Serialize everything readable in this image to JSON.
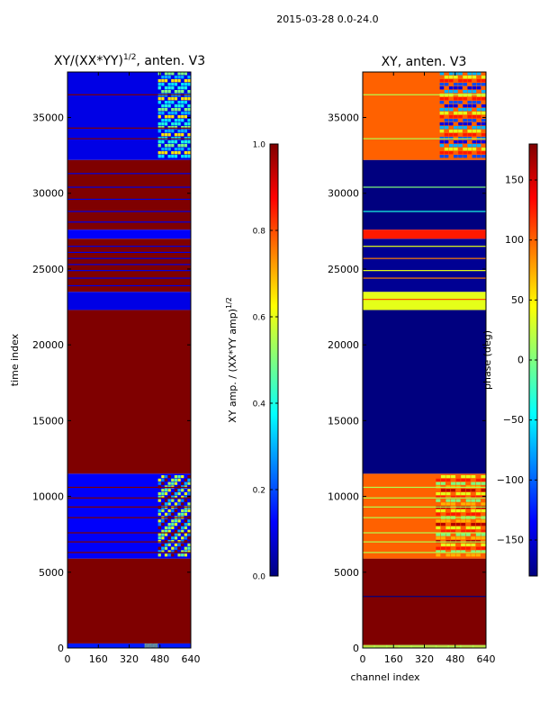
{
  "figure": {
    "suptitle": "2015-03-28 0.0-24.0"
  },
  "colormap": {
    "name": "jet",
    "stops": [
      "#00007f",
      "#0000ff",
      "#007fff",
      "#00ffff",
      "#7fff7f",
      "#ffff00",
      "#ff7f00",
      "#ff0000",
      "#7f0000"
    ]
  },
  "chart_data": [
    {
      "type": "heatmap",
      "title": "XY/(XX*YY)^(1/2), anten. V3",
      "title_main": "XY/(XX*YY)",
      "title_exp": "1/2",
      "title_suffix": ", anten. V3",
      "xlabel": "",
      "ylabel": "time index",
      "xlim": [
        0,
        640
      ],
      "ylim": [
        0,
        38000
      ],
      "xticks": [
        0,
        160,
        320,
        480,
        640
      ],
      "yticks": [
        0,
        5000,
        10000,
        15000,
        20000,
        25000,
        30000,
        35000
      ],
      "colorbar": {
        "label": "XY amp. / (XX*YY amp)",
        "label_exp": "1/2",
        "vmin": 0.0,
        "vmax": 1.0,
        "ticks": [
          "0.0",
          "0.2",
          "0.4",
          "0.6",
          "0.8",
          "1.0"
        ],
        "tick_values": [
          0.0,
          0.2,
          0.4,
          0.6,
          0.8,
          1.0
        ]
      },
      "bands": [
        {
          "from": 0,
          "to": 300,
          "value": 0.15
        },
        {
          "from": 300,
          "to": 5900,
          "value": 1.0
        },
        {
          "from": 5900,
          "to": 11500,
          "value": 0.12
        },
        {
          "from": 11500,
          "to": 22300,
          "value": 1.0
        },
        {
          "from": 22300,
          "to": 23500,
          "value": 0.1
        },
        {
          "from": 23500,
          "to": 27000,
          "value": 1.0
        },
        {
          "from": 27000,
          "to": 27600,
          "value": 0.12
        },
        {
          "from": 27600,
          "to": 32200,
          "value": 1.0
        },
        {
          "from": 32200,
          "to": 38000,
          "value": 0.1
        }
      ],
      "thin_lines": [
        {
          "at": 6300,
          "value": 1.0
        },
        {
          "at": 7000,
          "value": 1.0
        },
        {
          "at": 7600,
          "value": 1.0
        },
        {
          "at": 8600,
          "value": 1.0
        },
        {
          "at": 9300,
          "value": 1.0
        },
        {
          "at": 9900,
          "value": 1.0
        },
        {
          "at": 10600,
          "value": 1.0
        },
        {
          "at": 23900,
          "value": 0.1
        },
        {
          "at": 24400,
          "value": 0.1
        },
        {
          "at": 24900,
          "value": 0.1
        },
        {
          "at": 25300,
          "value": 0.1
        },
        {
          "at": 25700,
          "value": 0.1
        },
        {
          "at": 26100,
          "value": 0.1
        },
        {
          "at": 26500,
          "value": 0.1
        },
        {
          "at": 28100,
          "value": 0.1
        },
        {
          "at": 28800,
          "value": 0.1
        },
        {
          "at": 29600,
          "value": 0.1
        },
        {
          "at": 30400,
          "value": 0.1
        },
        {
          "at": 31300,
          "value": 0.1
        },
        {
          "at": 33600,
          "value": 1.0
        },
        {
          "at": 34300,
          "value": 1.0
        },
        {
          "at": 36500,
          "value": 1.0
        }
      ],
      "speckle_regions": [
        {
          "x0": 470,
          "x1": 640,
          "y0": 6000,
          "y1": 11400,
          "values": [
            0.45,
            0.55,
            0.3,
            1.0,
            0.25,
            0.6
          ]
        },
        {
          "x0": 470,
          "x1": 640,
          "y0": 32300,
          "y1": 38000,
          "values": [
            0.4,
            0.5,
            0.3,
            0.65,
            0.35
          ]
        },
        {
          "x0": 400,
          "x1": 470,
          "y0": 0,
          "y1": 300,
          "values": [
            0.5,
            0.6
          ]
        }
      ]
    },
    {
      "type": "heatmap",
      "title": "XY, anten. V3",
      "xlabel": "channel index",
      "ylabel": "",
      "xlim": [
        0,
        640
      ],
      "ylim": [
        0,
        38000
      ],
      "xticks": [
        0,
        160,
        320,
        480,
        640
      ],
      "yticks": [
        0,
        5000,
        10000,
        15000,
        20000,
        25000,
        30000,
        35000
      ],
      "colorbar": {
        "label": "phase (deg)",
        "vmin": -180,
        "vmax": 180,
        "ticks": [
          "−150",
          "−100",
          "−50",
          "0",
          "50",
          "100",
          "150"
        ],
        "tick_values": [
          -150,
          -100,
          -50,
          0,
          50,
          100,
          150
        ]
      },
      "bands": [
        {
          "from": 0,
          "to": 200,
          "value": 0.55
        },
        {
          "from": 200,
          "to": 5900,
          "value": 1.0
        },
        {
          "from": 5900,
          "to": 11500,
          "value": 0.78
        },
        {
          "from": 11500,
          "to": 22300,
          "value": 0.0
        },
        {
          "from": 22300,
          "to": 23500,
          "value": 0.6
        },
        {
          "from": 23500,
          "to": 27000,
          "value": 0.02
        },
        {
          "from": 27000,
          "to": 27600,
          "value": 0.85
        },
        {
          "from": 27600,
          "to": 32200,
          "value": 0.0
        },
        {
          "from": 32200,
          "to": 38000,
          "value": 0.78
        }
      ],
      "thin_lines": [
        {
          "at": 3400,
          "value": 0.0
        },
        {
          "at": 6300,
          "value": 0.55
        },
        {
          "at": 7000,
          "value": 0.55
        },
        {
          "at": 7600,
          "value": 0.55
        },
        {
          "at": 8600,
          "value": 0.55
        },
        {
          "at": 9300,
          "value": 0.55
        },
        {
          "at": 9900,
          "value": 0.55
        },
        {
          "at": 10600,
          "value": 0.55
        },
        {
          "at": 23000,
          "value": 0.8
        },
        {
          "at": 24400,
          "value": 0.75
        },
        {
          "at": 24900,
          "value": 0.6
        },
        {
          "at": 25700,
          "value": 0.75
        },
        {
          "at": 26500,
          "value": 0.6
        },
        {
          "at": 28800,
          "value": 0.4
        },
        {
          "at": 30400,
          "value": 0.5
        },
        {
          "at": 33600,
          "value": 0.55
        },
        {
          "at": 36500,
          "value": 0.55
        }
      ],
      "speckle_regions": [
        {
          "x0": 380,
          "x1": 640,
          "y0": 6000,
          "y1": 11400,
          "values": [
            0.6,
            0.85,
            0.5,
            0.7,
            0.95
          ]
        },
        {
          "x0": 400,
          "x1": 640,
          "y0": 32300,
          "y1": 38000,
          "values": [
            0.1,
            0.3,
            0.6,
            0.85,
            0.2
          ]
        },
        {
          "x0": 0,
          "x1": 640,
          "y0": 0,
          "y1": 200,
          "values": [
            0.45,
            0.6,
            0.8
          ]
        }
      ]
    }
  ]
}
